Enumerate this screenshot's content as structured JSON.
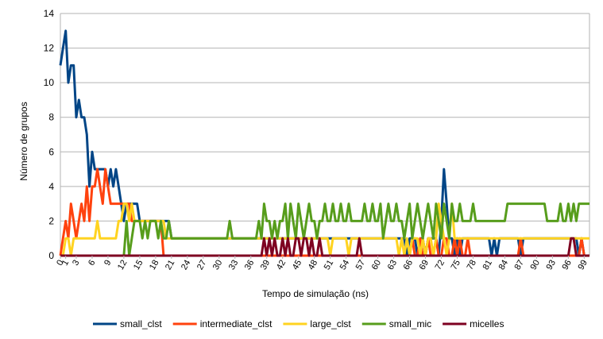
{
  "chart_data": {
    "type": "line",
    "title": "",
    "xlabel": "Tempo de simulação (ns)",
    "ylabel": "Número de grupos",
    "xlim": [
      0,
      100
    ],
    "ylim": [
      0,
      14
    ],
    "yticks": [
      0,
      2,
      4,
      6,
      8,
      10,
      12,
      14
    ],
    "xticks": [
      0,
      1,
      3,
      6,
      9,
      12,
      15,
      18,
      21,
      24,
      27,
      30,
      33,
      36,
      39,
      42,
      45,
      48,
      51,
      54,
      57,
      60,
      63,
      66,
      69,
      72,
      75,
      78,
      81,
      84,
      87,
      90,
      93,
      96,
      99
    ],
    "grid": "horizontal",
    "legend_position": "bottom",
    "x": [
      0,
      0.5,
      1,
      1.5,
      2,
      2.5,
      3,
      3.5,
      4,
      4.5,
      5,
      5.5,
      6,
      6.5,
      7,
      7.5,
      8,
      8.5,
      9,
      9.5,
      10,
      10.5,
      11,
      11.5,
      12,
      12.5,
      13,
      13.5,
      14,
      14.5,
      15,
      15.5,
      16,
      16.5,
      17,
      17.5,
      18,
      18.5,
      19,
      19.5,
      20,
      20.5,
      21,
      21.5,
      22,
      22.5,
      23,
      23.5,
      24,
      24.5,
      25,
      25.5,
      26,
      26.5,
      27,
      27.5,
      28,
      28.5,
      29,
      29.5,
      30,
      30.5,
      31,
      31.5,
      32,
      32.5,
      33,
      33.5,
      34,
      34.5,
      35,
      35.5,
      36,
      36.5,
      37,
      37.5,
      38,
      38.5,
      39,
      39.5,
      40,
      40.5,
      41,
      41.5,
      42,
      42.5,
      43,
      43.5,
      44,
      44.5,
      45,
      45.5,
      46,
      46.5,
      47,
      47.5,
      48,
      48.5,
      49,
      49.5,
      50,
      50.5,
      51,
      51.5,
      52,
      52.5,
      53,
      53.5,
      54,
      54.5,
      55,
      55.5,
      56,
      56.5,
      57,
      57.5,
      58,
      58.5,
      59,
      59.5,
      60,
      60.5,
      61,
      61.5,
      62,
      62.5,
      63,
      63.5,
      64,
      64.5,
      65,
      65.5,
      66,
      66.5,
      67,
      67.5,
      68,
      68.5,
      69,
      69.5,
      70,
      70.5,
      71,
      71.5,
      72,
      72.5,
      73,
      73.5,
      74,
      74.5,
      75,
      75.5,
      76,
      76.5,
      77,
      77.5,
      78,
      78.5,
      79,
      79.5,
      80,
      80.5,
      81,
      81.5,
      82,
      82.5,
      83,
      83.5,
      84,
      84.5,
      85,
      85.5,
      86,
      86.5,
      87,
      87.5,
      88,
      88.5,
      89,
      89.5,
      90,
      90.5,
      91,
      91.5,
      92,
      92.5,
      93,
      93.5,
      94,
      94.5,
      95,
      95.5,
      96,
      96.5,
      97,
      97.5,
      98,
      98.5,
      99,
      99.5,
      100
    ],
    "series": [
      {
        "name": "small_clst",
        "color": "#004586",
        "values": [
          11,
          12,
          13,
          10,
          11,
          11,
          8,
          9,
          8,
          8,
          7,
          4,
          6,
          5,
          5,
          5,
          5,
          5,
          4,
          5,
          4,
          5,
          4,
          3,
          2,
          3,
          3,
          3,
          3,
          3,
          2,
          2,
          2,
          2,
          2,
          2,
          2,
          2,
          2,
          2,
          2,
          2,
          1,
          1,
          1,
          1,
          1,
          1,
          1,
          1,
          1,
          1,
          1,
          1,
          1,
          1,
          1,
          1,
          1,
          1,
          1,
          1,
          1,
          1,
          1,
          1,
          1,
          1,
          1,
          1,
          1,
          1,
          1,
          1,
          1,
          1,
          1,
          1,
          1,
          1,
          1,
          1,
          1,
          1,
          1,
          1,
          1,
          1,
          1,
          1,
          1,
          1,
          1,
          1,
          1,
          1,
          1,
          1,
          1,
          1,
          1,
          1,
          1,
          1,
          1,
          1,
          1,
          1,
          1,
          1,
          1,
          1,
          1,
          1,
          1,
          1,
          1,
          1,
          1,
          1,
          1,
          1,
          1,
          1,
          1,
          1,
          1,
          1,
          1,
          1,
          1,
          0,
          1,
          1,
          1,
          0,
          1,
          1,
          0,
          1,
          1,
          1,
          1,
          0,
          2,
          5,
          3,
          1,
          1,
          0,
          1,
          0,
          1,
          1,
          1,
          1,
          1,
          1,
          1,
          1,
          1,
          1,
          1,
          0,
          1,
          0,
          1,
          1,
          1,
          1,
          1,
          1,
          1,
          1,
          0,
          1,
          1,
          1,
          1,
          1,
          1,
          1,
          1,
          1,
          1,
          1,
          1,
          1,
          1,
          1,
          1,
          1,
          1,
          1,
          1,
          1,
          0,
          1,
          0,
          0,
          0
        ]
      },
      {
        "name": "intermediate_clst",
        "color": "#ff420e",
        "values": [
          0,
          1,
          2,
          1,
          3,
          2,
          1,
          2,
          3,
          2,
          4,
          2,
          4,
          4,
          5,
          4,
          3,
          5,
          4,
          3,
          3,
          3,
          3,
          3,
          3,
          3,
          3,
          2,
          2,
          2,
          2,
          2,
          2,
          2,
          2,
          2,
          2,
          2,
          2,
          0,
          0,
          0,
          0,
          0,
          0,
          0,
          0,
          0,
          0,
          0,
          0,
          0,
          0,
          0,
          0,
          0,
          0,
          0,
          0,
          0,
          0,
          0,
          0,
          0,
          0,
          0,
          0,
          0,
          0,
          0,
          0,
          0,
          0,
          0,
          0,
          0,
          0,
          0,
          0,
          0,
          0,
          0,
          0,
          0,
          0,
          0,
          0,
          0,
          0,
          0,
          0,
          0,
          0,
          0,
          0,
          0,
          0,
          0,
          0,
          0,
          0,
          0,
          0,
          0,
          0,
          0,
          0,
          0,
          0,
          0,
          0,
          0,
          0,
          0,
          0,
          0,
          0,
          0,
          0,
          0,
          0,
          0,
          0,
          0,
          0,
          0,
          0,
          0,
          0,
          0,
          0,
          0,
          0,
          1,
          0,
          0,
          1,
          0,
          0,
          1,
          0,
          0,
          1,
          0,
          0,
          1,
          1,
          0,
          0,
          1,
          0,
          1,
          0,
          0,
          1,
          0,
          0,
          0,
          0,
          0,
          0,
          0,
          0,
          0,
          0,
          0,
          0,
          0,
          0,
          0,
          0,
          0,
          0,
          0,
          1,
          0,
          0,
          0,
          0,
          0,
          0,
          0,
          0,
          0,
          0,
          0,
          0,
          0,
          0,
          0,
          0,
          0,
          0,
          0,
          0,
          0,
          0,
          1,
          0,
          0,
          0
        ]
      },
      {
        "name": "large_clst",
        "color": "#ffd320",
        "values": [
          0,
          0,
          1,
          1,
          0,
          1,
          1,
          1,
          1,
          1,
          1,
          1,
          1,
          1,
          2,
          1,
          1,
          1,
          1,
          1,
          1,
          1,
          2,
          2,
          3,
          3,
          2,
          3,
          2,
          2,
          2,
          2,
          2,
          2,
          2,
          2,
          2,
          2,
          2,
          2,
          1,
          1,
          1,
          1,
          1,
          1,
          1,
          1,
          1,
          1,
          1,
          1,
          1,
          1,
          1,
          1,
          1,
          1,
          1,
          1,
          1,
          1,
          1,
          1,
          1,
          1,
          1,
          1,
          1,
          1,
          1,
          1,
          1,
          1,
          1,
          1,
          1,
          1,
          1,
          1,
          1,
          1,
          1,
          1,
          1,
          1,
          1,
          1,
          1,
          1,
          1,
          1,
          1,
          1,
          1,
          1,
          1,
          1,
          1,
          1,
          1,
          1,
          0,
          1,
          1,
          1,
          1,
          1,
          1,
          0,
          1,
          1,
          1,
          1,
          1,
          1,
          1,
          1,
          1,
          1,
          1,
          1,
          1,
          1,
          1,
          1,
          1,
          1,
          0,
          1,
          0,
          1,
          0,
          1,
          1,
          1,
          0,
          1,
          0,
          1,
          1,
          0,
          1,
          3,
          2,
          1,
          0,
          1,
          3,
          1,
          1,
          1,
          1,
          1,
          1,
          1,
          1,
          1,
          1,
          1,
          1,
          1,
          1,
          1,
          1,
          1,
          1,
          1,
          1,
          1,
          1,
          1,
          1,
          1,
          1,
          1,
          1,
          1,
          1,
          1,
          1,
          1,
          1,
          1,
          1,
          1,
          1,
          1,
          1,
          1,
          1,
          1,
          1,
          1,
          1,
          1,
          1,
          1,
          1,
          1,
          1
        ]
      },
      {
        "name": "small_mic",
        "color": "#579d1c",
        "values": [
          0,
          0,
          0,
          0,
          0,
          0,
          0,
          0,
          0,
          0,
          0,
          0,
          0,
          0,
          0,
          0,
          0,
          0,
          0,
          0,
          0,
          0,
          0,
          0,
          0,
          2,
          0,
          1,
          2,
          2,
          2,
          1,
          2,
          1,
          2,
          2,
          2,
          1,
          2,
          1,
          1,
          2,
          1,
          1,
          1,
          1,
          1,
          1,
          1,
          1,
          1,
          1,
          1,
          1,
          1,
          1,
          1,
          1,
          1,
          1,
          1,
          1,
          1,
          1,
          2,
          1,
          1,
          1,
          1,
          1,
          1,
          1,
          1,
          1,
          1,
          2,
          1,
          3,
          2,
          2,
          1,
          2,
          1,
          2,
          2,
          3,
          1,
          3,
          2,
          1,
          3,
          2,
          1,
          2,
          3,
          2,
          2,
          1,
          2,
          2,
          3,
          2,
          2,
          3,
          2,
          2,
          3,
          2,
          2,
          3,
          2,
          2,
          2,
          2,
          2,
          3,
          2,
          2,
          3,
          2,
          2,
          3,
          1,
          2,
          3,
          2,
          2,
          3,
          2,
          2,
          1,
          2,
          3,
          1,
          2,
          3,
          2,
          1,
          2,
          3,
          2,
          1,
          3,
          2,
          1,
          3,
          2,
          1,
          3,
          2,
          2,
          3,
          2,
          2,
          2,
          2,
          3,
          2,
          2,
          2,
          2,
          2,
          2,
          2,
          2,
          2,
          2,
          2,
          2,
          3,
          3,
          3,
          3,
          3,
          3,
          3,
          3,
          3,
          3,
          3,
          3,
          3,
          3,
          3,
          2,
          2,
          2,
          2,
          2,
          3,
          2,
          2,
          3,
          2,
          3,
          2,
          3,
          3,
          3,
          3,
          3
        ]
      },
      {
        "name": "micelles",
        "color": "#7e0021",
        "values": [
          0,
          0,
          0,
          0,
          0,
          0,
          0,
          0,
          0,
          0,
          0,
          0,
          0,
          0,
          0,
          0,
          0,
          0,
          0,
          0,
          0,
          0,
          0,
          0,
          0,
          0,
          0,
          0,
          0,
          0,
          0,
          0,
          0,
          0,
          0,
          0,
          0,
          0,
          0,
          0,
          0,
          0,
          0,
          0,
          0,
          0,
          0,
          0,
          0,
          0,
          0,
          0,
          0,
          0,
          0,
          0,
          0,
          0,
          0,
          0,
          0,
          0,
          0,
          0,
          0,
          0,
          0,
          0,
          0,
          0,
          0,
          0,
          0,
          0,
          0,
          0,
          0,
          1,
          0,
          1,
          0,
          1,
          0,
          0,
          1,
          0,
          1,
          0,
          0,
          1,
          1,
          0,
          1,
          1,
          0,
          1,
          0,
          0,
          1,
          0,
          0,
          0,
          0,
          0,
          0,
          0,
          0,
          0,
          0,
          0,
          0,
          0,
          0,
          1,
          0,
          0,
          0,
          0,
          0,
          0,
          0,
          0,
          0,
          0,
          0,
          0,
          0,
          0,
          0,
          0,
          0,
          0,
          0,
          0,
          0,
          0,
          0,
          0,
          0,
          0,
          0,
          0,
          0,
          0,
          0,
          0,
          0,
          0,
          0,
          0,
          0,
          0,
          0,
          0,
          0,
          0,
          0,
          0,
          0,
          0,
          0,
          0,
          0,
          0,
          0,
          0,
          0,
          0,
          0,
          0,
          0,
          0,
          0,
          0,
          0,
          0,
          0,
          0,
          0,
          0,
          0,
          0,
          0,
          0,
          0,
          0,
          0,
          0,
          0,
          0,
          0,
          0,
          0,
          1,
          1,
          0,
          0,
          0,
          0,
          0,
          0
        ]
      }
    ]
  }
}
